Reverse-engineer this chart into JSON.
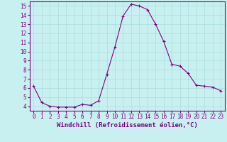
{
  "x": [
    0,
    1,
    2,
    3,
    4,
    5,
    6,
    7,
    8,
    9,
    10,
    11,
    12,
    13,
    14,
    15,
    16,
    17,
    18,
    19,
    20,
    21,
    22,
    23
  ],
  "y": [
    6.2,
    4.4,
    4.0,
    3.9,
    3.9,
    3.9,
    4.2,
    4.1,
    4.6,
    7.5,
    10.5,
    13.9,
    15.2,
    15.0,
    14.6,
    13.0,
    11.1,
    8.6,
    8.4,
    7.6,
    6.3,
    6.2,
    6.1,
    5.7
  ],
  "line_color": "#800080",
  "marker": "+",
  "marker_size": 3,
  "xlabel": "Windchill (Refroidissement éolien,°C)",
  "ylabel_ticks": [
    4,
    5,
    6,
    7,
    8,
    9,
    10,
    11,
    12,
    13,
    14,
    15
  ],
  "ylim": [
    3.5,
    15.5
  ],
  "xlim": [
    -0.5,
    23.5
  ],
  "bg_color": "#c8f0f0",
  "grid_color": "#aadddd",
  "tick_color": "#800080",
  "label_color": "#800080",
  "xlabel_fontsize": 6.5,
  "tick_fontsize": 5.5
}
